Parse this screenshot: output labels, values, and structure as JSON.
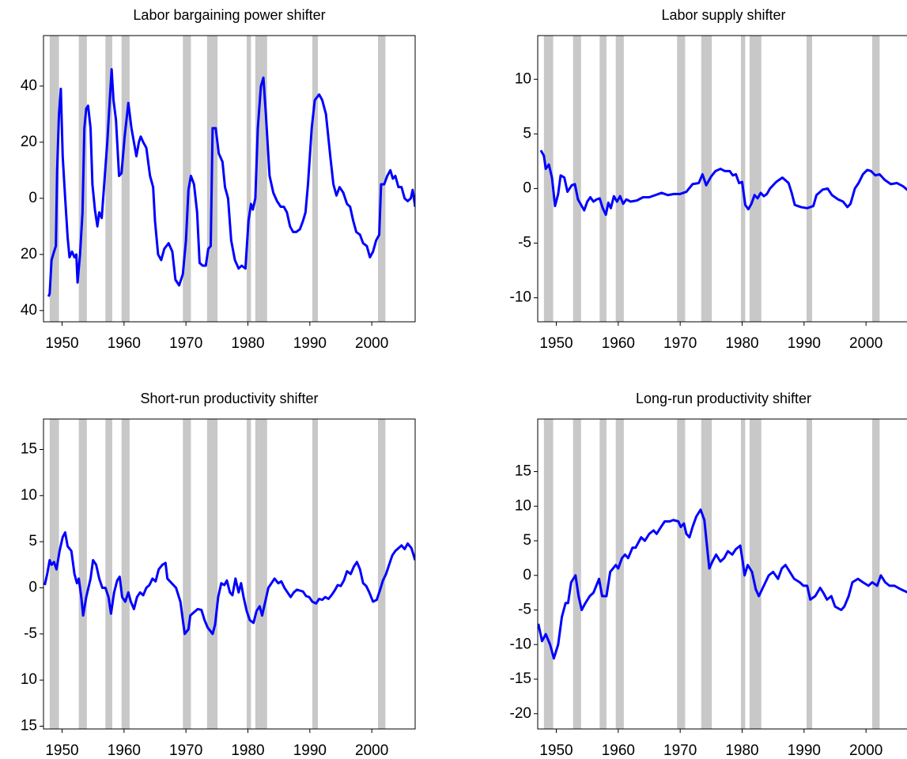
{
  "chart_data": [
    {
      "type": "line",
      "title": "Labor bargaining power shifter",
      "color": "#0000ff",
      "shade_color": "#c8c8c8",
      "xlim": [
        1947,
        2007
      ],
      "xticks": [
        1950,
        1960,
        1970,
        1980,
        1990,
        2000
      ],
      "ylim": [
        -44,
        58
      ],
      "yticks": [
        40,
        20,
        0,
        {
          "value": -20,
          "label": "20"
        },
        {
          "value": -40,
          "label": "40"
        }
      ],
      "shaded_periods": [
        [
          1948.0,
          1949.5
        ],
        [
          1952.7,
          1954.0
        ],
        [
          1957.0,
          1958.1
        ],
        [
          1959.6,
          1960.9
        ],
        [
          1969.5,
          1970.8
        ],
        [
          1973.4,
          1975.1
        ],
        [
          1979.8,
          1980.5
        ],
        [
          1981.2,
          1983.1
        ],
        [
          1990.4,
          1991.3
        ],
        [
          2001.0,
          2002.2
        ]
      ],
      "x": [
        1947.8,
        1948.0,
        1948.3,
        1948.7,
        1949.0,
        1949.2,
        1949.5,
        1949.8,
        1950.1,
        1950.5,
        1950.9,
        1951.2,
        1951.6,
        1952.0,
        1952.3,
        1952.5,
        1952.9,
        1953.3,
        1953.6,
        1953.9,
        1954.2,
        1954.6,
        1954.9,
        1955.3,
        1955.7,
        1956.0,
        1956.4,
        1956.8,
        1957.3,
        1957.7,
        1958.0,
        1958.3,
        1958.7,
        1959.2,
        1959.6,
        1960.1,
        1960.7,
        1961.2,
        1961.6,
        1962.0,
        1962.4,
        1962.7,
        1963.1,
        1963.6,
        1964.2,
        1964.7,
        1965.0,
        1965.5,
        1966.0,
        1966.5,
        1967.2,
        1967.8,
        1968.3,
        1968.9,
        1969.5,
        1970.0,
        1970.4,
        1970.8,
        1971.3,
        1971.8,
        1972.2,
        1972.7,
        1973.2,
        1973.6,
        1974.0,
        1974.3,
        1974.8,
        1975.3,
        1975.9,
        1976.3,
        1976.8,
        1977.3,
        1977.9,
        1978.5,
        1979.0,
        1979.6,
        1980.1,
        1980.5,
        1980.8,
        1981.2,
        1981.6,
        1982.1,
        1982.5,
        1982.9,
        1983.5,
        1984.1,
        1984.7,
        1985.3,
        1985.8,
        1986.3,
        1986.8,
        1987.3,
        1987.8,
        1988.4,
        1988.9,
        1989.3,
        1989.7,
        1990.3,
        1990.8,
        1991.5,
        1992.0,
        1992.6,
        1993.3,
        1993.8,
        1994.3,
        1994.8,
        1995.4,
        1996.0,
        1996.5,
        1997.0,
        1997.5,
        1998.1,
        1998.6,
        1999.2,
        1999.7,
        2000.2,
        2000.7,
        2001.2,
        2001.5,
        2002.0,
        2002.5,
        2003.0,
        2003.4,
        2003.8,
        2004.3,
        2004.8,
        2005.3,
        2005.8,
        2006.3,
        2006.6,
        2007.0
      ],
      "values": [
        -35,
        -34,
        -22,
        -19,
        -17,
        10,
        30,
        39,
        15,
        0,
        -14,
        -21,
        -19,
        -21,
        -20,
        -30,
        -20,
        -5,
        25,
        32,
        33,
        25,
        5,
        -4,
        -10,
        -5,
        -7,
        5,
        20,
        35,
        46,
        35,
        28,
        8,
        9,
        22,
        34,
        25,
        20,
        15,
        20,
        22,
        20,
        18,
        8,
        4,
        -8,
        -20,
        -22,
        -18,
        -16,
        -19,
        -29,
        -31,
        -27,
        -15,
        3,
        8,
        5,
        -5,
        -23,
        -24,
        -24,
        -18,
        -17,
        25,
        25,
        16,
        13,
        4,
        0,
        -15,
        -22,
        -25,
        -24,
        -25,
        -8,
        -2,
        -4,
        0,
        25,
        40,
        43,
        30,
        8,
        2,
        -1,
        -3,
        -3,
        -5,
        -10,
        -12,
        -12,
        -11,
        -8,
        -5,
        5,
        25,
        35,
        37,
        35,
        30,
        15,
        5,
        1,
        4,
        2,
        -2,
        -3,
        -8,
        -12,
        -13,
        -16,
        -17,
        -21,
        -19,
        -15,
        -13,
        5,
        5,
        8,
        10,
        7,
        8,
        4,
        4,
        0,
        -1,
        0,
        3,
        -3
      ]
    },
    {
      "type": "line",
      "title": "Labor supply shifter",
      "color": "#0000ff",
      "shade_color": "#c8c8c8",
      "xlim": [
        1947,
        2007
      ],
      "xticks": [
        1950,
        1960,
        1970,
        1980,
        1990,
        2000
      ],
      "ylim": [
        -12.2,
        14
      ],
      "yticks": [
        10,
        5,
        0,
        -5,
        -10
      ],
      "shaded_periods": [
        [
          1948.0,
          1949.5
        ],
        [
          1952.7,
          1954.0
        ],
        [
          1957.0,
          1958.1
        ],
        [
          1959.6,
          1960.9
        ],
        [
          1969.5,
          1970.8
        ],
        [
          1973.4,
          1975.1
        ],
        [
          1979.8,
          1980.5
        ],
        [
          1981.2,
          1983.1
        ],
        [
          1990.4,
          1991.3
        ],
        [
          2001.0,
          2002.2
        ]
      ],
      "x": [
        1947.5,
        1948.0,
        1948.3,
        1948.8,
        1949.3,
        1949.8,
        1950.3,
        1950.7,
        1951.3,
        1951.8,
        1952.5,
        1953.0,
        1953.5,
        1954.0,
        1954.5,
        1955.0,
        1955.5,
        1956.0,
        1956.5,
        1957.0,
        1957.5,
        1958.0,
        1958.4,
        1958.8,
        1959.3,
        1959.8,
        1960.3,
        1960.8,
        1961.3,
        1962.0,
        1963.0,
        1964.0,
        1965.0,
        1966.0,
        1967.0,
        1968.0,
        1969.0,
        1970.0,
        1971.0,
        1972.0,
        1973.0,
        1973.6,
        1974.2,
        1975.0,
        1975.7,
        1976.5,
        1977.2,
        1978.0,
        1978.5,
        1979.0,
        1979.5,
        1980.0,
        1980.5,
        1981.0,
        1981.5,
        1982.0,
        1982.5,
        1983.0,
        1983.5,
        1984.0,
        1984.5,
        1985.5,
        1986.5,
        1987.5,
        1988.0,
        1988.5,
        1989.5,
        1990.5,
        1991.5,
        1992.0,
        1993.0,
        1993.8,
        1994.5,
        1995.0,
        1995.5,
        1996.3,
        1997.0,
        1997.5,
        1998.2,
        1998.8,
        1999.5,
        2000.2,
        2000.8,
        2001.5,
        2002.2,
        2003.0,
        2004.0,
        2005.0,
        2006.0,
        2007.0
      ],
      "values": [
        3.5,
        3,
        1.8,
        2.2,
        1,
        -1.6,
        -0.5,
        1.2,
        1,
        -0.3,
        0.3,
        0.4,
        -1,
        -1.5,
        -2,
        -1.2,
        -0.8,
        -1.2,
        -1,
        -0.9,
        -1.8,
        -2.4,
        -1.3,
        -1.8,
        -0.7,
        -1.2,
        -0.7,
        -1.4,
        -1,
        -1.2,
        -1.1,
        -0.8,
        -0.8,
        -0.6,
        -0.4,
        -0.6,
        -0.5,
        -0.5,
        -0.3,
        0.4,
        0.5,
        1.3,
        0.3,
        1.1,
        1.6,
        1.8,
        1.6,
        1.6,
        1.2,
        1.3,
        0.5,
        0.6,
        -1.5,
        -1.9,
        -1.4,
        -0.6,
        -0.9,
        -0.4,
        -0.7,
        -0.5,
        0,
        0.6,
        1,
        0.5,
        -0.4,
        -1.5,
        -1.7,
        -1.8,
        -1.6,
        -0.6,
        -0.1,
        0,
        -0.6,
        -0.8,
        -1,
        -1.2,
        -1.7,
        -1.4,
        0,
        0.5,
        1.3,
        1.7,
        1.6,
        1.2,
        1.3,
        0.8,
        0.4,
        0.5,
        0.2,
        -0.3
      ]
    },
    {
      "type": "line",
      "title": "Short-run productivity shifter",
      "color": "#0000ff",
      "shade_color": "#c8c8c8",
      "xlim": [
        1947,
        2007
      ],
      "xticks": [
        1950,
        1960,
        1970,
        1980,
        1990,
        2000
      ],
      "ylim": [
        -15.3,
        18.3
      ],
      "yticks": [
        15,
        10,
        5,
        0,
        -5,
        {
          "value": -10,
          "label": "10"
        },
        {
          "value": -15,
          "label": "15"
        }
      ],
      "shaded_periods": [
        [
          1948.0,
          1949.5
        ],
        [
          1952.7,
          1954.0
        ],
        [
          1957.0,
          1958.1
        ],
        [
          1959.6,
          1960.9
        ],
        [
          1969.5,
          1970.8
        ],
        [
          1973.4,
          1975.1
        ],
        [
          1979.8,
          1980.5
        ],
        [
          1981.2,
          1983.1
        ],
        [
          1990.4,
          1991.3
        ],
        [
          2001.0,
          2002.2
        ]
      ],
      "x": [
        1947.2,
        1947.6,
        1948.0,
        1948.3,
        1948.7,
        1949.1,
        1949.6,
        1950.1,
        1950.5,
        1950.9,
        1951.5,
        1952.0,
        1952.4,
        1952.7,
        1953.1,
        1953.4,
        1953.9,
        1954.6,
        1955.0,
        1955.5,
        1956.0,
        1956.5,
        1957.0,
        1957.5,
        1957.9,
        1958.4,
        1958.9,
        1959.3,
        1959.7,
        1960.2,
        1960.7,
        1961.1,
        1961.6,
        1962.1,
        1962.6,
        1963.1,
        1963.6,
        1964.1,
        1964.6,
        1965.1,
        1965.6,
        1966.2,
        1966.7,
        1967.0,
        1967.7,
        1968.4,
        1969.1,
        1969.6,
        1969.8,
        1970.4,
        1970.7,
        1971.2,
        1971.9,
        1972.5,
        1973.0,
        1973.5,
        1974.3,
        1974.7,
        1975.2,
        1975.7,
        1976.2,
        1976.6,
        1977.1,
        1977.5,
        1978.0,
        1978.5,
        1978.9,
        1979.3,
        1979.8,
        1980.3,
        1980.9,
        1981.4,
        1981.9,
        1982.3,
        1982.8,
        1983.3,
        1983.8,
        1984.3,
        1984.9,
        1985.4,
        1985.9,
        1986.4,
        1986.9,
        1987.4,
        1987.9,
        1988.4,
        1988.9,
        1989.4,
        1989.9,
        1990.4,
        1991.0,
        1991.5,
        1992.0,
        1992.5,
        1993.0,
        1993.5,
        1994.0,
        1994.5,
        1995.0,
        1995.5,
        1996.0,
        1996.6,
        1997.1,
        1997.6,
        1998.1,
        1998.6,
        1999.1,
        1999.6,
        2000.2,
        2000.8,
        2001.3,
        2001.8,
        2002.3,
        2002.8,
        2003.3,
        2003.8,
        2004.3,
        2004.8,
        2005.3,
        2005.8,
        2006.4,
        2007.0
      ],
      "values": [
        0.3,
        1.5,
        3,
        2.5,
        2.8,
        2,
        4,
        5.5,
        6,
        4.5,
        4,
        1.5,
        0.5,
        1,
        -1,
        -3,
        -1,
        1,
        3,
        2.5,
        1,
        0,
        0,
        -1,
        -2.8,
        -0.5,
        0.8,
        1.2,
        -1,
        -1.5,
        -0.5,
        -1.5,
        -2.3,
        -1,
        -0.5,
        -0.8,
        0,
        0.3,
        1,
        0.7,
        2,
        2.5,
        2.7,
        1,
        0.5,
        0,
        -1.5,
        -4,
        -5,
        -4.5,
        -3,
        -2.7,
        -2.3,
        -2.4,
        -3.5,
        -4.3,
        -5,
        -4,
        -1,
        0.5,
        0.3,
        0.8,
        -0.5,
        -0.8,
        1,
        -0.5,
        0.5,
        -1,
        -2.5,
        -3.5,
        -3.8,
        -2.5,
        -2,
        -3,
        -1.5,
        0,
        0.5,
        1,
        0.5,
        0.7,
        0,
        -0.5,
        -1,
        -0.5,
        -0.2,
        -0.3,
        -0.4,
        -0.9,
        -1,
        -1.5,
        -1.7,
        -1.2,
        -1.3,
        -1,
        -1.2,
        -0.8,
        -0.3,
        0.3,
        0.2,
        0.8,
        1.8,
        1.5,
        2.3,
        2.8,
        2,
        0.5,
        0.2,
        -0.5,
        -1.5,
        -1.3,
        -0.3,
        0.8,
        1.5,
        2.5,
        3.5,
        4,
        4.3,
        4.6,
        4.2,
        4.8,
        4.3,
        3
      ]
    },
    {
      "type": "line",
      "title": "Long-run productivity shifter",
      "color": "#0000ff",
      "shade_color": "#c8c8c8",
      "xlim": [
        1947,
        2007
      ],
      "xticks": [
        1950,
        1960,
        1970,
        1980,
        1990,
        2000
      ],
      "ylim": [
        -22.2,
        22.6
      ],
      "yticks": [
        15,
        10,
        5,
        0,
        -5,
        -10,
        -15,
        -20
      ],
      "shaded_periods": [
        [
          1948.0,
          1949.5
        ],
        [
          1952.7,
          1954.0
        ],
        [
          1957.0,
          1958.1
        ],
        [
          1959.6,
          1960.9
        ],
        [
          1969.5,
          1970.8
        ],
        [
          1973.4,
          1975.1
        ],
        [
          1979.8,
          1980.5
        ],
        [
          1981.2,
          1983.1
        ],
        [
          1990.4,
          1991.3
        ],
        [
          2001.0,
          2002.2
        ]
      ],
      "x": [
        1947.1,
        1947.7,
        1948.3,
        1949.0,
        1949.6,
        1950.3,
        1950.9,
        1951.5,
        1951.9,
        1952.4,
        1953.1,
        1953.6,
        1954.1,
        1954.7,
        1955.4,
        1956.0,
        1956.9,
        1957.4,
        1958.1,
        1958.7,
        1959.6,
        1960.0,
        1960.6,
        1961.1,
        1961.6,
        1962.3,
        1962.8,
        1963.7,
        1964.3,
        1965.0,
        1965.7,
        1966.2,
        1966.9,
        1967.5,
        1968.3,
        1968.9,
        1969.7,
        1970.1,
        1970.6,
        1971.0,
        1971.5,
        1972.0,
        1972.6,
        1973.3,
        1973.9,
        1974.3,
        1974.7,
        1975.2,
        1975.8,
        1976.5,
        1977.1,
        1977.7,
        1978.4,
        1979.0,
        1979.7,
        1980.1,
        1980.4,
        1980.9,
        1981.6,
        1982.2,
        1982.7,
        1983.5,
        1984.3,
        1985.0,
        1985.8,
        1986.4,
        1987.0,
        1987.7,
        1988.4,
        1989.3,
        1989.9,
        1990.5,
        1991.0,
        1991.8,
        1992.6,
        1993.1,
        1993.7,
        1994.4,
        1995.0,
        1996.0,
        1996.5,
        1997.2,
        1997.8,
        1998.7,
        1999.5,
        2000.4,
        2001.0,
        2001.8,
        2002.4,
        2003.1,
        2003.8,
        2004.6,
        2005.6,
        2006.8
      ],
      "values": [
        -7,
        -9.5,
        -8.5,
        -10,
        -12,
        -10,
        -6,
        -4,
        -4,
        -1,
        0,
        -3,
        -5,
        -4,
        -3,
        -2.5,
        -0.5,
        -3,
        -3,
        0.5,
        1.5,
        1,
        2.5,
        3,
        2.5,
        4,
        4,
        5.5,
        5,
        6,
        6.5,
        6,
        7,
        7.8,
        7.8,
        8,
        7.8,
        7,
        7.5,
        6,
        5.5,
        7,
        8.5,
        9.5,
        8,
        4.5,
        1,
        2,
        3,
        2,
        2.5,
        3.5,
        3,
        3.8,
        4.3,
        2,
        0,
        1.5,
        0.5,
        -2,
        -3,
        -1.5,
        0,
        0.5,
        -0.5,
        1,
        1.5,
        0.5,
        -0.5,
        -1,
        -1.5,
        -1.5,
        -3.5,
        -3,
        -1.8,
        -2.5,
        -3.5,
        -3,
        -4.5,
        -5,
        -4.5,
        -3,
        -1,
        -0.5,
        -1,
        -1.5,
        -1,
        -1.5,
        0,
        -1,
        -1.5,
        -1.5,
        -2,
        -2.5
      ]
    }
  ]
}
